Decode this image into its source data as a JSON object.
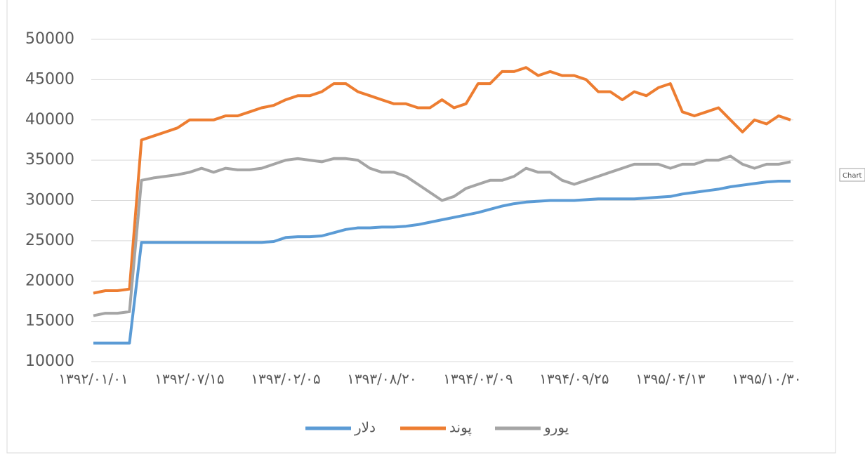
{
  "chart_data": {
    "type": "line",
    "categories": [
      "۱۳۹۲/۰۱/۰۱",
      null,
      null,
      null,
      null,
      null,
      null,
      null,
      "۱۳۹۲/۰۷/۱۵",
      null,
      null,
      null,
      null,
      null,
      null,
      null,
      "۱۳۹۳/۰۲/۰۵",
      null,
      null,
      null,
      null,
      null,
      null,
      null,
      "۱۳۹۳/۰۸/۲۰",
      null,
      null,
      null,
      null,
      null,
      null,
      null,
      "۱۳۹۴/۰۳/۰۹",
      null,
      null,
      null,
      null,
      null,
      null,
      null,
      "۱۳۹۴/۰۹/۲۵",
      null,
      null,
      null,
      null,
      null,
      null,
      null,
      "۱۳۹۵/۰۴/۱۳",
      null,
      null,
      null,
      null,
      null,
      null,
      null,
      "۱۳۹۵/۱۰/۳۰",
      null,
      null
    ],
    "series": [
      {
        "name": "دلار",
        "color": "#5b9bd5",
        "values": [
          12300,
          12300,
          12300,
          12300,
          24800,
          24800,
          24800,
          24800,
          24800,
          24800,
          24800,
          24800,
          24800,
          24800,
          24800,
          24900,
          25400,
          25500,
          25500,
          25600,
          26000,
          26400,
          26600,
          26600,
          26700,
          26700,
          26800,
          27000,
          27300,
          27600,
          27900,
          28200,
          28500,
          28900,
          29300,
          29600,
          29800,
          29900,
          30000,
          30000,
          30000,
          30100,
          30200,
          30200,
          30200,
          30200,
          30300,
          30400,
          30500,
          30800,
          31000,
          31200,
          31400,
          31700,
          31900,
          32100,
          32300,
          32400,
          32400
        ]
      },
      {
        "name": "پوند",
        "color": "#ed7d31",
        "values": [
          18500,
          18800,
          18800,
          19000,
          37500,
          38000,
          38500,
          39000,
          40000,
          40000,
          40000,
          40500,
          40500,
          41000,
          41500,
          41800,
          42500,
          43000,
          43000,
          43500,
          44500,
          44500,
          43500,
          43000,
          42500,
          42000,
          42000,
          41500,
          41500,
          42500,
          41500,
          42000,
          44500,
          44500,
          46000,
          46000,
          46500,
          45500,
          46000,
          45500,
          45500,
          45000,
          43500,
          43500,
          42500,
          43500,
          43000,
          44000,
          44500,
          41000,
          40500,
          41000,
          41500,
          40000,
          38500,
          40000,
          39500,
          40500,
          40000
        ]
      },
      {
        "name": "یورو",
        "color": "#a5a5a5",
        "values": [
          15700,
          16000,
          16000,
          16200,
          32500,
          32800,
          33000,
          33200,
          33500,
          34000,
          33500,
          34000,
          33800,
          33800,
          34000,
          34500,
          35000,
          35200,
          35000,
          34800,
          35200,
          35200,
          35000,
          34000,
          33500,
          33500,
          33000,
          32000,
          31000,
          30000,
          30500,
          31500,
          32000,
          32500,
          32500,
          33000,
          34000,
          33500,
          33500,
          32500,
          32000,
          32500,
          33000,
          33500,
          34000,
          34500,
          34500,
          34500,
          34000,
          34500,
          34500,
          35000,
          35000,
          35500,
          34500,
          34000,
          34500,
          34500,
          34800
        ]
      }
    ],
    "ylim": [
      10000,
      50000
    ],
    "yticks": [
      10000,
      15000,
      20000,
      25000,
      30000,
      35000,
      40000,
      45000,
      50000
    ],
    "grid": true,
    "legend": "bottom",
    "tooltip": "Chart"
  }
}
